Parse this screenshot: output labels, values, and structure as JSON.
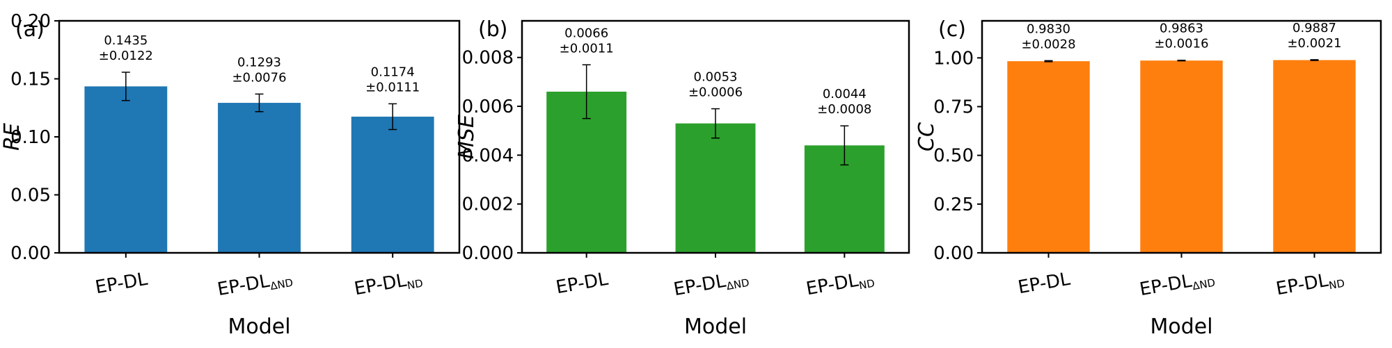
{
  "chart_data": [
    {
      "type": "bar",
      "panel_label": "(a)",
      "categories": [
        "EP-DL",
        "EP-DL_ΔND",
        "EP-DL_ND"
      ],
      "tick_labels": [
        {
          "main": "EP-DL",
          "sub": ""
        },
        {
          "main": "EP-DL",
          "sub": "ΔND"
        },
        {
          "main": "EP-DL",
          "sub": "ND"
        }
      ],
      "values": [
        0.1435,
        0.1293,
        0.1174
      ],
      "errors": [
        0.0122,
        0.0076,
        0.0111
      ],
      "value_labels": [
        "0.1435",
        "0.1293",
        "0.1174"
      ],
      "error_labels": [
        "±0.0122",
        "±0.0076",
        "±0.0111"
      ],
      "yticks": [
        "0.00",
        "0.05",
        "0.10",
        "0.15",
        "0.20"
      ],
      "ylim": [
        0,
        0.2
      ],
      "ylabel": "RE",
      "xlabel": "Model",
      "color": "#1f77b4",
      "grid": false
    },
    {
      "type": "bar",
      "panel_label": "(b)",
      "categories": [
        "EP-DL",
        "EP-DL_ΔND",
        "EP-DL_ND"
      ],
      "tick_labels": [
        {
          "main": "EP-DL",
          "sub": ""
        },
        {
          "main": "EP-DL",
          "sub": "ΔND"
        },
        {
          "main": "EP-DL",
          "sub": "ND"
        }
      ],
      "values": [
        0.0066,
        0.0053,
        0.0044
      ],
      "errors": [
        0.0011,
        0.0006,
        0.0008
      ],
      "value_labels": [
        "0.0066",
        "0.0053",
        "0.0044"
      ],
      "error_labels": [
        "±0.0011",
        "±0.0006",
        "±0.0008"
      ],
      "yticks": [
        "0.000",
        "0.002",
        "0.004",
        "0.006",
        "0.008"
      ],
      "ylim": [
        0,
        0.0095
      ],
      "ylabel": "MSE",
      "xlabel": "Model",
      "color": "#2ca02c",
      "grid": false
    },
    {
      "type": "bar",
      "panel_label": "(c)",
      "categories": [
        "EP-DL",
        "EP-DL_ΔND",
        "EP-DL_ND"
      ],
      "tick_labels": [
        {
          "main": "EP-DL",
          "sub": ""
        },
        {
          "main": "EP-DL",
          "sub": "ΔND"
        },
        {
          "main": "EP-DL",
          "sub": "ND"
        }
      ],
      "values": [
        0.983,
        0.9863,
        0.9887
      ],
      "errors": [
        0.0028,
        0.0016,
        0.0021
      ],
      "value_labels": [
        "0.9830",
        "0.9863",
        "0.9887"
      ],
      "error_labels": [
        "±0.0028",
        "±0.0016",
        "±0.0021"
      ],
      "yticks": [
        "0.00",
        "0.25",
        "0.50",
        "0.75",
        "1.00"
      ],
      "ylim": [
        0,
        1.19
      ],
      "ylabel": "CC",
      "xlabel": "Model",
      "color": "#ff7f0e",
      "grid": false
    }
  ]
}
